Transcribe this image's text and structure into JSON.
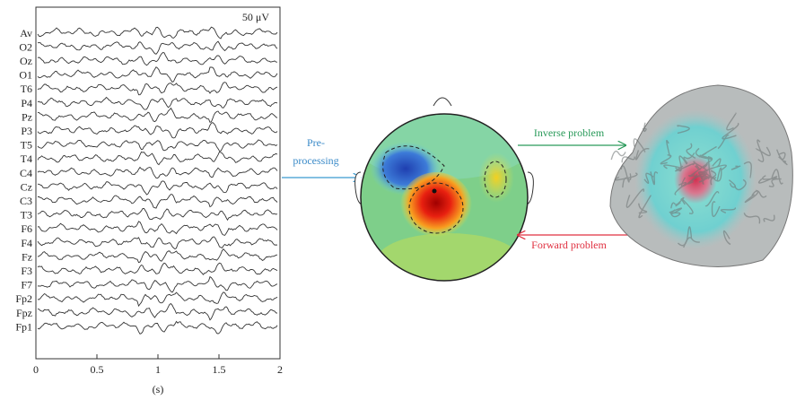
{
  "eeg": {
    "scale_label": "50 μV",
    "channels": [
      "Av",
      "O2",
      "Oz",
      "O1",
      "T6",
      "P4",
      "Pz",
      "P3",
      "T5",
      "T4",
      "C4",
      "Cz",
      "C3",
      "T3",
      "F6",
      "F4",
      "Fz",
      "F3",
      "F7",
      "Fp2",
      "Fpz",
      "Fp1"
    ],
    "xlim": [
      0,
      2
    ],
    "xticks": [
      0,
      0.5,
      1,
      1.5,
      2
    ],
    "x_unit": "(s)"
  },
  "labels": {
    "preprocessing": [
      "Pre-",
      "processing"
    ],
    "inverse": "Inverse problem",
    "forward": "Forward problem"
  }
}
